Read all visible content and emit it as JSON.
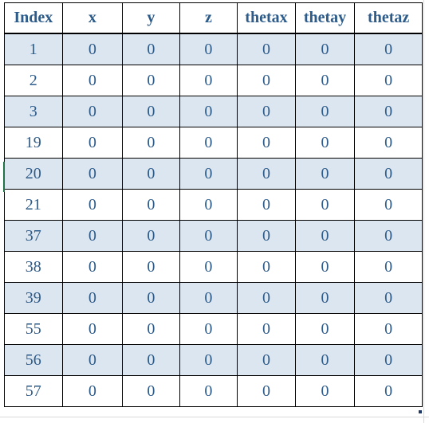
{
  "table": {
    "columns": [
      "Index",
      "x",
      "y",
      "z",
      "thetax",
      "thetay",
      "thetaz"
    ],
    "rows": [
      [
        "1",
        "0",
        "0",
        "0",
        "0",
        "0",
        "0"
      ],
      [
        "2",
        "0",
        "0",
        "0",
        "0",
        "0",
        "0"
      ],
      [
        "3",
        "0",
        "0",
        "0",
        "0",
        "0",
        "0"
      ],
      [
        "19",
        "0",
        "0",
        "0",
        "0",
        "0",
        "0"
      ],
      [
        "20",
        "0",
        "0",
        "0",
        "0",
        "0",
        "0"
      ],
      [
        "21",
        "0",
        "0",
        "0",
        "0",
        "0",
        "0"
      ],
      [
        "37",
        "0",
        "0",
        "0",
        "0",
        "0",
        "0"
      ],
      [
        "38",
        "0",
        "0",
        "0",
        "0",
        "0",
        "0"
      ],
      [
        "39",
        "0",
        "0",
        "0",
        "0",
        "0",
        "0"
      ],
      [
        "55",
        "0",
        "0",
        "0",
        "0",
        "0",
        "0"
      ],
      [
        "56",
        "0",
        "0",
        "0",
        "0",
        "0",
        "0"
      ],
      [
        "57",
        "0",
        "0",
        "0",
        "0",
        "0",
        "0"
      ]
    ]
  },
  "colors": {
    "header_text": "#2e5c8a",
    "band_fill": "#dce6f1",
    "grid_line": "#000000",
    "active_cell_marker": "#217346"
  }
}
